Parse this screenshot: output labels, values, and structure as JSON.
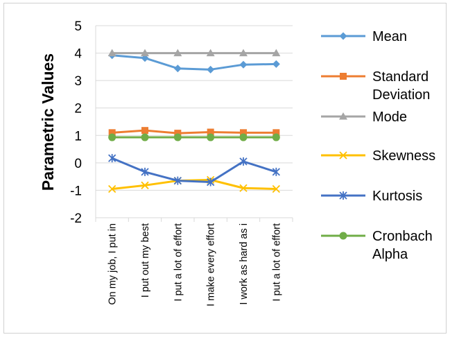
{
  "chart_data": {
    "type": "line",
    "title": "",
    "ylabel": "Parametric Values",
    "xlabel": "",
    "ylim": [
      -2,
      5
    ],
    "yticks": [
      5,
      4,
      3,
      2,
      1,
      0,
      -1,
      -2
    ],
    "grid": "horizontal",
    "legend_position": "right",
    "categories": [
      "On my job, I put in",
      "I put out my best",
      "I put a lot of effort",
      "I make every effort",
      "I work as hard as i",
      "I put a lot of effort"
    ],
    "series": [
      {
        "name": "Mean",
        "color": "#5b9bd5",
        "marker": "diamond",
        "values": [
          3.92,
          3.82,
          3.44,
          3.4,
          3.58,
          3.6
        ]
      },
      {
        "name": "Standard Deviation",
        "color": "#ed7d31",
        "marker": "square",
        "values": [
          1.1,
          1.18,
          1.08,
          1.12,
          1.1,
          1.1
        ]
      },
      {
        "name": "Mode",
        "color": "#a5a5a5",
        "marker": "triangle",
        "values": [
          4,
          4,
          4,
          4,
          4,
          4
        ]
      },
      {
        "name": "Skewness",
        "color": "#ffc000",
        "marker": "x",
        "values": [
          -0.95,
          -0.82,
          -0.65,
          -0.62,
          -0.92,
          -0.95
        ]
      },
      {
        "name": "Kurtosis",
        "color": "#4472c4",
        "marker": "star",
        "values": [
          0.17,
          -0.33,
          -0.65,
          -0.7,
          0.05,
          -0.33
        ]
      },
      {
        "name": "Cronbach Alpha",
        "color": "#70ad47",
        "marker": "circle",
        "values": [
          0.93,
          0.93,
          0.93,
          0.93,
          0.93,
          0.93
        ]
      }
    ]
  }
}
